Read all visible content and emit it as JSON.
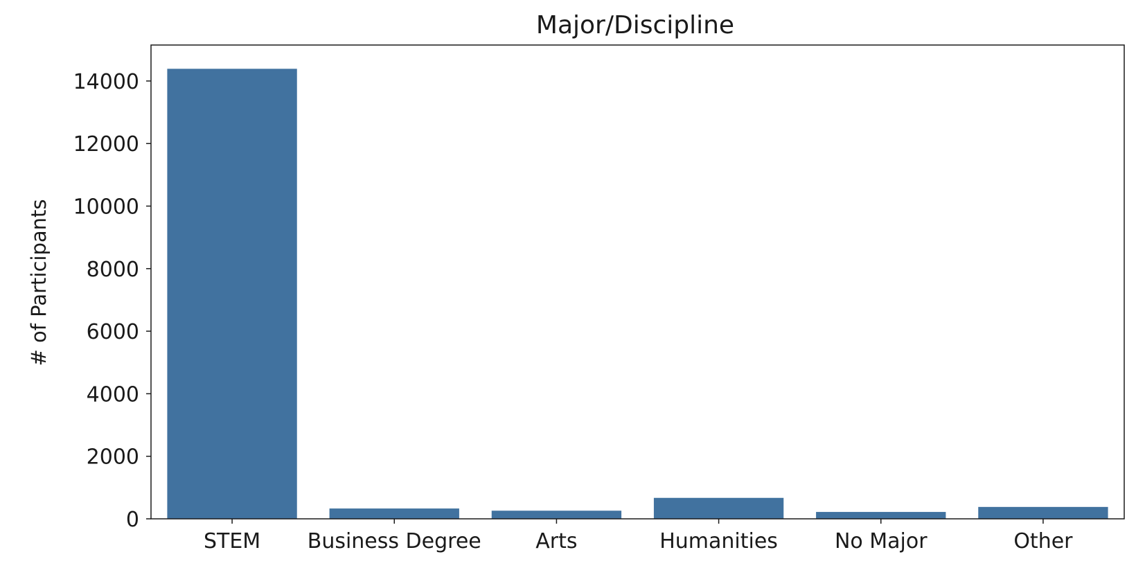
{
  "chart_data": {
    "type": "bar",
    "title": "Major/Discipline",
    "xlabel": "",
    "ylabel": "# of Participants",
    "categories": [
      "STEM",
      "Business Degree",
      "Arts",
      "Humanities",
      "No Major",
      "Other"
    ],
    "values": [
      14390,
      330,
      260,
      670,
      220,
      380
    ],
    "ylim": [
      0,
      15150
    ],
    "yticks": [
      0,
      2000,
      4000,
      6000,
      8000,
      10000,
      12000,
      14000
    ],
    "ytick_labels": [
      "0",
      "2000",
      "4000",
      "6000",
      "8000",
      "10000",
      "12000",
      "14000"
    ],
    "bar_color": "#41729f",
    "grid": false,
    "legend": "none"
  }
}
